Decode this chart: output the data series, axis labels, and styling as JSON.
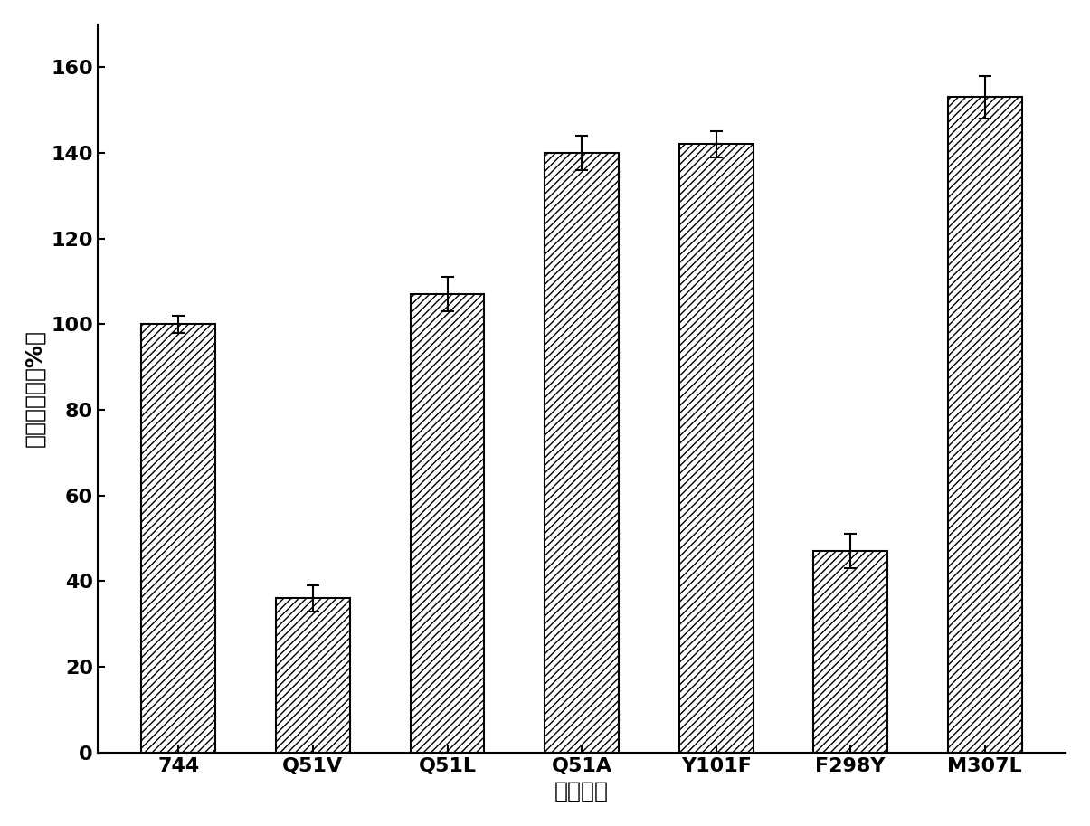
{
  "categories": [
    "744",
    "Q51V",
    "Q51L",
    "Q51A",
    "Y101F",
    "F298Y",
    "M307L"
  ],
  "values": [
    100,
    36,
    107,
    140,
    142,
    47,
    153
  ],
  "errors": [
    2,
    3,
    4,
    4,
    3,
    4,
    5
  ],
  "bar_color": "#ffffff",
  "hatch": "////",
  "edge_color": "#000000",
  "ylabel": "相对比酶活（%）",
  "xlabel": "突变位点",
  "ylim": [
    0,
    170
  ],
  "yticks": [
    0,
    20,
    40,
    60,
    80,
    100,
    120,
    140,
    160
  ],
  "bar_width": 0.55,
  "figsize": [
    12.05,
    9.13
  ],
  "dpi": 100,
  "background_color": "#ffffff",
  "label_fontsize": 18,
  "tick_fontsize": 16
}
